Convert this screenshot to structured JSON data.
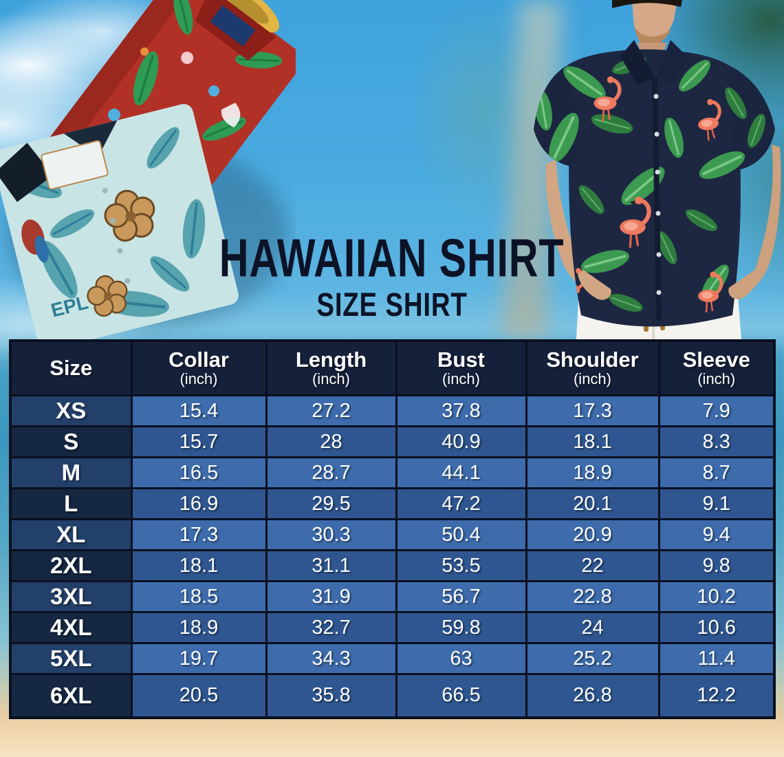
{
  "title": {
    "line1": "HAWAIIAN SHIRT",
    "line2": "SIZE SHIRT"
  },
  "hero": {
    "left_photo": "folded-hawaiian-shirts",
    "left_photo_text": "EPL",
    "right_photo": "man-wearing-flamingo-hawaiian-shirt"
  },
  "size_table": {
    "columns": [
      {
        "label": "Size",
        "unit": ""
      },
      {
        "label": "Collar",
        "unit": "(inch)"
      },
      {
        "label": "Length",
        "unit": "(inch)"
      },
      {
        "label": "Bust",
        "unit": "(inch)"
      },
      {
        "label": "Shoulder",
        "unit": "(inch)"
      },
      {
        "label": "Sleeve",
        "unit": "(inch)"
      }
    ],
    "rows": [
      {
        "size": "XS",
        "values": [
          "15.4",
          "27.2",
          "37.8",
          "17.3",
          "7.9"
        ]
      },
      {
        "size": "S",
        "values": [
          "15.7",
          "28",
          "40.9",
          "18.1",
          "8.3"
        ]
      },
      {
        "size": "M",
        "values": [
          "16.5",
          "28.7",
          "44.1",
          "18.9",
          "8.7"
        ]
      },
      {
        "size": "L",
        "values": [
          "16.9",
          "29.5",
          "47.2",
          "20.1",
          "9.1"
        ]
      },
      {
        "size": "XL",
        "values": [
          "17.3",
          "30.3",
          "50.4",
          "20.9",
          "9.4"
        ]
      },
      {
        "size": "2XL",
        "values": [
          "18.1",
          "31.1",
          "53.5",
          "22",
          "9.8"
        ]
      },
      {
        "size": "3XL",
        "values": [
          "18.5",
          "31.9",
          "56.7",
          "22.8",
          "10.2"
        ]
      },
      {
        "size": "4XL",
        "values": [
          "18.9",
          "32.7",
          "59.8",
          "24",
          "10.6"
        ]
      },
      {
        "size": "5XL",
        "values": [
          "19.7",
          "34.3",
          "63",
          "25.2",
          "11.4"
        ]
      },
      {
        "size": "6XL",
        "values": [
          "20.5",
          "35.8",
          "66.5",
          "26.8",
          "12.2"
        ]
      }
    ]
  },
  "colors": {
    "header_bg": "#15203a",
    "size_cell_light": "#23406b",
    "size_cell_dark": "#152741",
    "value_cell_light": "#3d6bab",
    "value_cell_dark": "#2f5690",
    "table_border": "#0a101f",
    "title_text": "#0d1326",
    "sky": "#3fa2dc",
    "sand": "#f2d9b3",
    "red_shirt": "#b23127",
    "teal_shirt": "#c8e4e4",
    "navy_shirt": "#1d2742",
    "flamingo": "#ee7a5f",
    "leaf_green": "#3c9a50"
  }
}
